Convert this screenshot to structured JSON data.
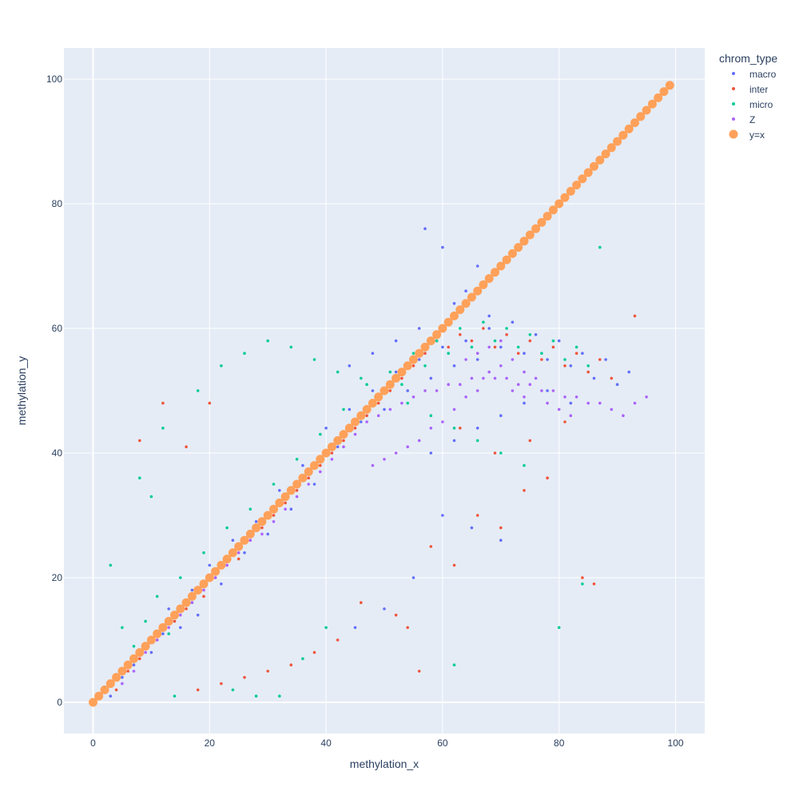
{
  "chart_data": {
    "type": "scatter",
    "xlabel": "methylation_x",
    "ylabel": "methylation_y",
    "xlim": [
      -5,
      105
    ],
    "ylim": [
      -5,
      105
    ],
    "x_ticks": [
      0,
      20,
      40,
      60,
      80,
      100
    ],
    "y_ticks": [
      0,
      20,
      40,
      60,
      80,
      100
    ],
    "grid": true,
    "legend": {
      "title": "chrom_type",
      "position": "top-right"
    },
    "series": [
      {
        "name": "macro",
        "color": "#636efa",
        "marker": "small-dot",
        "points": [
          [
            3,
            1
          ],
          [
            5,
            4
          ],
          [
            7,
            6
          ],
          [
            9,
            9
          ],
          [
            10,
            8
          ],
          [
            12,
            11
          ],
          [
            13,
            15
          ],
          [
            15,
            12
          ],
          [
            17,
            18
          ],
          [
            18,
            14
          ],
          [
            20,
            22
          ],
          [
            22,
            19
          ],
          [
            24,
            26
          ],
          [
            26,
            24
          ],
          [
            28,
            29
          ],
          [
            30,
            27
          ],
          [
            32,
            34
          ],
          [
            34,
            31
          ],
          [
            36,
            38
          ],
          [
            38,
            35
          ],
          [
            40,
            44
          ],
          [
            42,
            41
          ],
          [
            44,
            47
          ],
          [
            46,
            45
          ],
          [
            48,
            50
          ],
          [
            50,
            47
          ],
          [
            52,
            53
          ],
          [
            54,
            50
          ],
          [
            56,
            55
          ],
          [
            58,
            52
          ],
          [
            60,
            57
          ],
          [
            62,
            54
          ],
          [
            64,
            58
          ],
          [
            66,
            55
          ],
          [
            68,
            60
          ],
          [
            70,
            57
          ],
          [
            72,
            61
          ],
          [
            74,
            56
          ],
          [
            76,
            59
          ],
          [
            78,
            55
          ],
          [
            80,
            58
          ],
          [
            82,
            54
          ],
          [
            84,
            56
          ],
          [
            86,
            52
          ],
          [
            88,
            55
          ],
          [
            90,
            51
          ],
          [
            92,
            53
          ],
          [
            60,
            30
          ],
          [
            65,
            28
          ],
          [
            70,
            26
          ],
          [
            55,
            20
          ],
          [
            50,
            15
          ],
          [
            45,
            12
          ],
          [
            58,
            40
          ],
          [
            62,
            42
          ],
          [
            66,
            44
          ],
          [
            70,
            46
          ],
          [
            74,
            48
          ],
          [
            78,
            50
          ],
          [
            82,
            48
          ],
          [
            64,
            66
          ],
          [
            66,
            70
          ],
          [
            68,
            62
          ],
          [
            62,
            64
          ],
          [
            56,
            60
          ],
          [
            52,
            58
          ],
          [
            48,
            56
          ],
          [
            44,
            54
          ],
          [
            57,
            76
          ],
          [
            60,
            73
          ]
        ]
      },
      {
        "name": "inter",
        "color": "#ef553b",
        "marker": "small-dot",
        "points": [
          [
            4,
            2
          ],
          [
            6,
            5
          ],
          [
            8,
            7
          ],
          [
            11,
            10
          ],
          [
            14,
            13
          ],
          [
            16,
            15
          ],
          [
            19,
            17
          ],
          [
            21,
            20
          ],
          [
            23,
            22
          ],
          [
            25,
            23
          ],
          [
            27,
            26
          ],
          [
            29,
            28
          ],
          [
            31,
            30
          ],
          [
            33,
            32
          ],
          [
            35,
            34
          ],
          [
            37,
            36
          ],
          [
            39,
            38
          ],
          [
            41,
            40
          ],
          [
            43,
            42
          ],
          [
            45,
            44
          ],
          [
            47,
            46
          ],
          [
            49,
            48
          ],
          [
            51,
            50
          ],
          [
            53,
            52
          ],
          [
            55,
            54
          ],
          [
            57,
            56
          ],
          [
            59,
            58
          ],
          [
            61,
            57
          ],
          [
            63,
            59
          ],
          [
            65,
            58
          ],
          [
            67,
            60
          ],
          [
            69,
            57
          ],
          [
            71,
            59
          ],
          [
            73,
            56
          ],
          [
            75,
            58
          ],
          [
            77,
            55
          ],
          [
            79,
            57
          ],
          [
            81,
            54
          ],
          [
            83,
            56
          ],
          [
            85,
            53
          ],
          [
            87,
            55
          ],
          [
            89,
            52
          ],
          [
            52,
            14
          ],
          [
            54,
            12
          ],
          [
            58,
            25
          ],
          [
            62,
            22
          ],
          [
            66,
            30
          ],
          [
            70,
            28
          ],
          [
            74,
            34
          ],
          [
            78,
            36
          ],
          [
            84,
            20
          ],
          [
            86,
            19
          ],
          [
            46,
            16
          ],
          [
            42,
            10
          ],
          [
            38,
            8
          ],
          [
            34,
            6
          ],
          [
            30,
            5
          ],
          [
            26,
            4
          ],
          [
            22,
            3
          ],
          [
            18,
            2
          ],
          [
            8,
            42
          ],
          [
            12,
            48
          ],
          [
            20,
            48
          ],
          [
            16,
            41
          ],
          [
            63,
            44
          ],
          [
            69,
            40
          ],
          [
            75,
            42
          ],
          [
            81,
            45
          ],
          [
            93,
            62
          ],
          [
            56,
            5
          ]
        ]
      },
      {
        "name": "micro",
        "color": "#00cc96",
        "marker": "small-dot",
        "points": [
          [
            3,
            22
          ],
          [
            5,
            12
          ],
          [
            7,
            9
          ],
          [
            9,
            13
          ],
          [
            11,
            17
          ],
          [
            13,
            11
          ],
          [
            15,
            20
          ],
          [
            17,
            16
          ],
          [
            19,
            24
          ],
          [
            21,
            21
          ],
          [
            23,
            28
          ],
          [
            25,
            25
          ],
          [
            27,
            31
          ],
          [
            29,
            29
          ],
          [
            31,
            35
          ],
          [
            33,
            33
          ],
          [
            35,
            39
          ],
          [
            37,
            37
          ],
          [
            39,
            43
          ],
          [
            41,
            41
          ],
          [
            43,
            47
          ],
          [
            45,
            45
          ],
          [
            47,
            51
          ],
          [
            49,
            49
          ],
          [
            51,
            53
          ],
          [
            53,
            51
          ],
          [
            55,
            56
          ],
          [
            57,
            54
          ],
          [
            59,
            58
          ],
          [
            61,
            56
          ],
          [
            63,
            60
          ],
          [
            65,
            57
          ],
          [
            67,
            61
          ],
          [
            69,
            58
          ],
          [
            71,
            60
          ],
          [
            73,
            57
          ],
          [
            75,
            59
          ],
          [
            77,
            56
          ],
          [
            79,
            58
          ],
          [
            81,
            55
          ],
          [
            83,
            57
          ],
          [
            85,
            54
          ],
          [
            87,
            73
          ],
          [
            84,
            19
          ],
          [
            80,
            12
          ],
          [
            62,
            6
          ],
          [
            40,
            12
          ],
          [
            36,
            7
          ],
          [
            32,
            1
          ],
          [
            28,
            1
          ],
          [
            24,
            2
          ],
          [
            14,
            1
          ],
          [
            10,
            33
          ],
          [
            8,
            36
          ],
          [
            12,
            44
          ],
          [
            18,
            50
          ],
          [
            22,
            54
          ],
          [
            26,
            56
          ],
          [
            30,
            58
          ],
          [
            34,
            57
          ],
          [
            38,
            55
          ],
          [
            42,
            53
          ],
          [
            46,
            52
          ],
          [
            50,
            50
          ],
          [
            54,
            48
          ],
          [
            58,
            46
          ],
          [
            62,
            44
          ],
          [
            66,
            42
          ],
          [
            70,
            40
          ],
          [
            74,
            38
          ]
        ]
      },
      {
        "name": "Z",
        "color": "#ab63fa",
        "marker": "small-dot",
        "points": [
          [
            5,
            3
          ],
          [
            7,
            5
          ],
          [
            9,
            8
          ],
          [
            11,
            10
          ],
          [
            13,
            12
          ],
          [
            15,
            14
          ],
          [
            17,
            16
          ],
          [
            19,
            18
          ],
          [
            21,
            20
          ],
          [
            23,
            22
          ],
          [
            25,
            24
          ],
          [
            27,
            26
          ],
          [
            29,
            27
          ],
          [
            31,
            29
          ],
          [
            33,
            31
          ],
          [
            35,
            33
          ],
          [
            37,
            35
          ],
          [
            39,
            37
          ],
          [
            41,
            39
          ],
          [
            43,
            41
          ],
          [
            45,
            43
          ],
          [
            47,
            45
          ],
          [
            49,
            46
          ],
          [
            51,
            47
          ],
          [
            53,
            48
          ],
          [
            55,
            49
          ],
          [
            57,
            50
          ],
          [
            59,
            50
          ],
          [
            61,
            51
          ],
          [
            63,
            51
          ],
          [
            65,
            52
          ],
          [
            67,
            52
          ],
          [
            69,
            52
          ],
          [
            71,
            52
          ],
          [
            73,
            51
          ],
          [
            75,
            51
          ],
          [
            77,
            50
          ],
          [
            79,
            50
          ],
          [
            81,
            49
          ],
          [
            83,
            49
          ],
          [
            85,
            48
          ],
          [
            87,
            48
          ],
          [
            89,
            47
          ],
          [
            91,
            46
          ],
          [
            93,
            48
          ],
          [
            95,
            49
          ],
          [
            60,
            45
          ],
          [
            62,
            47
          ],
          [
            64,
            49
          ],
          [
            66,
            50
          ],
          [
            68,
            53
          ],
          [
            70,
            54
          ],
          [
            72,
            55
          ],
          [
            74,
            53
          ],
          [
            76,
            52
          ],
          [
            78,
            48
          ],
          [
            80,
            47
          ],
          [
            82,
            46
          ],
          [
            58,
            44
          ],
          [
            56,
            42
          ],
          [
            54,
            41
          ],
          [
            52,
            40
          ],
          [
            50,
            39
          ],
          [
            48,
            38
          ],
          [
            64,
            55
          ],
          [
            66,
            56
          ],
          [
            68,
            57
          ],
          [
            70,
            58
          ],
          [
            72,
            50
          ],
          [
            74,
            49
          ]
        ]
      },
      {
        "name": "y=x",
        "color": "#ffa15a",
        "marker": "large-dot",
        "x": [
          0,
          99
        ],
        "y": [
          0,
          99
        ],
        "step": 1
      }
    ]
  }
}
